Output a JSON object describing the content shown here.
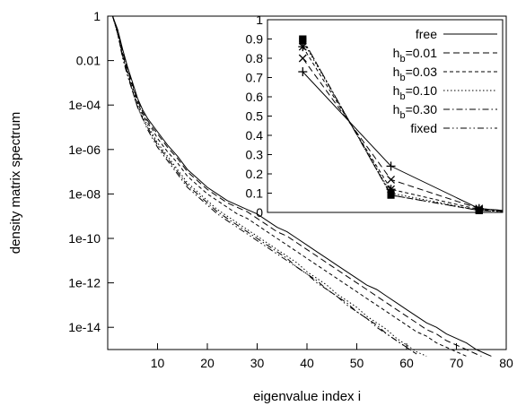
{
  "chart_data": [
    {
      "type": "line",
      "role": "main",
      "xlabel": "eigenvalue index i",
      "ylabel": "density matrix spectrum",
      "xlim": [
        0,
        80
      ],
      "ylim_log10": [
        -15,
        0
      ],
      "y_scale": "log",
      "grid": false,
      "x_ticks": [
        10,
        20,
        30,
        40,
        50,
        60,
        70,
        80
      ],
      "x_tick_labels": [
        "10",
        "20",
        "30",
        "40",
        "50",
        "60",
        "70",
        "80"
      ],
      "y_ticks_log10": [
        0,
        -2,
        -4,
        -6,
        -8,
        -10,
        -12,
        -14
      ],
      "y_tick_labels": [
        "1",
        "0.01",
        "1e-04",
        "1e-06",
        "1e-08",
        "1e-10",
        "1e-12",
        "1e-14"
      ],
      "series": [
        {
          "name": "free",
          "style": "solid",
          "x": [
            1,
            2,
            3,
            4,
            5,
            6,
            7,
            8,
            9,
            10,
            12,
            14,
            16,
            18,
            20,
            22,
            24,
            26,
            28,
            30,
            32,
            34,
            36,
            38,
            40,
            42,
            44,
            46,
            48,
            50,
            52,
            54,
            56,
            58,
            60,
            62,
            64,
            66,
            68,
            70,
            72,
            74,
            76,
            77
          ],
          "y_log10": [
            0.0,
            -0.6,
            -1.5,
            -2.3,
            -3.0,
            -3.7,
            -4.2,
            -4.6,
            -4.9,
            -5.2,
            -5.8,
            -6.3,
            -6.9,
            -7.3,
            -7.7,
            -8.0,
            -8.3,
            -8.5,
            -8.7,
            -8.9,
            -9.2,
            -9.5,
            -9.7,
            -10.0,
            -10.3,
            -10.6,
            -10.9,
            -11.2,
            -11.5,
            -11.8,
            -12.1,
            -12.3,
            -12.6,
            -12.9,
            -13.2,
            -13.5,
            -13.8,
            -14.0,
            -14.3,
            -14.5,
            -14.7,
            -15.0,
            -15.2,
            -15.3
          ]
        },
        {
          "name": "h_b=0.01",
          "style": "dashed",
          "x": [
            1,
            2,
            3,
            4,
            5,
            6,
            7,
            8,
            9,
            10,
            12,
            14,
            16,
            18,
            20,
            22,
            24,
            26,
            28,
            30,
            32,
            34,
            36,
            38,
            40,
            42,
            44,
            46,
            48,
            50,
            52,
            54,
            56,
            58,
            60,
            62,
            64,
            66,
            68,
            70,
            72,
            74,
            75
          ],
          "y_log10": [
            0.0,
            -0.7,
            -1.6,
            -2.4,
            -3.1,
            -3.8,
            -4.3,
            -4.7,
            -5.0,
            -5.3,
            -5.9,
            -6.4,
            -7.0,
            -7.4,
            -7.8,
            -8.1,
            -8.4,
            -8.6,
            -8.8,
            -9.1,
            -9.4,
            -9.7,
            -9.9,
            -10.2,
            -10.5,
            -10.8,
            -11.1,
            -11.4,
            -11.7,
            -12.0,
            -12.3,
            -12.6,
            -12.9,
            -13.2,
            -13.5,
            -13.8,
            -14.1,
            -14.3,
            -14.6,
            -14.8,
            -15.0,
            -15.2,
            -15.3
          ]
        },
        {
          "name": "h_b=0.03",
          "style": "short-dashed",
          "x": [
            1,
            2,
            3,
            4,
            5,
            6,
            7,
            8,
            9,
            10,
            12,
            14,
            16,
            18,
            20,
            22,
            24,
            26,
            28,
            30,
            32,
            34,
            36,
            38,
            40,
            42,
            44,
            46,
            48,
            50,
            52,
            54,
            56,
            58,
            60,
            62,
            64,
            66,
            68,
            70,
            72
          ],
          "y_log10": [
            0.0,
            -0.7,
            -1.7,
            -2.5,
            -3.2,
            -3.9,
            -4.4,
            -4.8,
            -5.1,
            -5.5,
            -6.1,
            -6.6,
            -7.2,
            -7.6,
            -8.0,
            -8.3,
            -8.6,
            -8.9,
            -9.1,
            -9.4,
            -9.7,
            -10.0,
            -10.3,
            -10.6,
            -10.9,
            -11.2,
            -11.5,
            -11.8,
            -12.1,
            -12.4,
            -12.7,
            -13.0,
            -13.3,
            -13.6,
            -13.9,
            -14.2,
            -14.4,
            -14.7,
            -14.9,
            -15.1,
            -15.3
          ]
        },
        {
          "name": "h_b=0.10",
          "style": "dotted",
          "x": [
            1,
            2,
            3,
            4,
            5,
            6,
            7,
            8,
            9,
            10,
            12,
            14,
            16,
            18,
            20,
            22,
            24,
            26,
            28,
            30,
            32,
            34,
            36,
            38,
            40,
            42,
            44,
            46,
            48,
            50,
            52,
            54,
            56,
            58,
            60,
            62,
            64
          ],
          "y_log10": [
            0.0,
            -0.8,
            -1.8,
            -2.6,
            -3.3,
            -4.0,
            -4.5,
            -4.9,
            -5.3,
            -5.7,
            -6.3,
            -6.9,
            -7.5,
            -7.9,
            -8.3,
            -8.7,
            -9.0,
            -9.3,
            -9.6,
            -9.9,
            -10.2,
            -10.5,
            -10.8,
            -11.1,
            -11.5,
            -11.8,
            -12.1,
            -12.5,
            -12.8,
            -13.1,
            -13.5,
            -13.8,
            -14.1,
            -14.5,
            -14.8,
            -15.1,
            -15.3
          ]
        },
        {
          "name": "h_b=0.30",
          "style": "dash-dot",
          "x": [
            1,
            2,
            3,
            4,
            5,
            6,
            7,
            8,
            9,
            10,
            12,
            14,
            16,
            18,
            20,
            22,
            24,
            26,
            28,
            30,
            32,
            34,
            36,
            38,
            40,
            42,
            44,
            46,
            48,
            50,
            52,
            54,
            56,
            58,
            60,
            62
          ],
          "y_log10": [
            0.0,
            -0.8,
            -1.8,
            -2.6,
            -3.4,
            -4.1,
            -4.6,
            -5.0,
            -5.4,
            -5.8,
            -6.4,
            -7.0,
            -7.6,
            -8.0,
            -8.4,
            -8.8,
            -9.1,
            -9.4,
            -9.7,
            -10.0,
            -10.3,
            -10.6,
            -10.9,
            -11.3,
            -11.6,
            -11.9,
            -12.3,
            -12.6,
            -12.9,
            -13.3,
            -13.6,
            -13.9,
            -14.3,
            -14.6,
            -14.9,
            -15.2
          ]
        },
        {
          "name": "fixed",
          "style": "dash-dot-dot",
          "x": [
            1,
            2,
            3,
            4,
            5,
            6,
            7,
            8,
            9,
            10,
            12,
            14,
            16,
            18,
            20,
            22,
            24,
            26,
            28,
            30,
            32,
            34,
            36,
            38,
            40,
            42,
            44,
            46,
            48,
            50,
            52,
            54,
            56,
            58,
            60,
            62
          ],
          "y_log10": [
            0.0,
            -0.8,
            -1.9,
            -2.7,
            -3.4,
            -4.1,
            -4.6,
            -5.1,
            -5.5,
            -5.9,
            -6.5,
            -7.1,
            -7.7,
            -8.1,
            -8.5,
            -8.9,
            -9.2,
            -9.5,
            -9.8,
            -10.1,
            -10.4,
            -10.7,
            -11.0,
            -11.3,
            -11.6,
            -12.0,
            -12.3,
            -12.6,
            -13.0,
            -13.3,
            -13.6,
            -14.0,
            -14.3,
            -14.6,
            -14.9,
            -15.2
          ]
        }
      ]
    },
    {
      "type": "line",
      "role": "inset",
      "xlim": [
        35,
        75
      ],
      "ylim": [
        0,
        1
      ],
      "y_ticks": [
        0,
        0.1,
        0.2,
        0.3,
        0.4,
        0.5,
        0.6,
        0.7,
        0.8,
        0.9,
        1
      ],
      "y_tick_labels": [
        "0",
        "0.1",
        "0.2",
        "0.3",
        "0.4",
        "0.5",
        "0.6",
        "0.7",
        "0.8",
        "0.9",
        "1"
      ],
      "legend_position": "top-right",
      "legend": [
        {
          "label": "free",
          "style": "solid"
        },
        {
          "label": "h_b=0.01",
          "base": "h",
          "sub": "b",
          "rest": "=0.01",
          "style": "dashed"
        },
        {
          "label": "h_b=0.03",
          "base": "h",
          "sub": "b",
          "rest": "=0.03",
          "style": "short-dashed"
        },
        {
          "label": "h_b=0.10",
          "base": "h",
          "sub": "b",
          "rest": "=0.10",
          "style": "dotted"
        },
        {
          "label": "h_b=0.30",
          "base": "h",
          "sub": "b",
          "rest": "=0.30",
          "style": "dash-dot"
        },
        {
          "label": "fixed",
          "style": "dash-dot-dot"
        }
      ],
      "series": [
        {
          "name": "free",
          "style": "solid",
          "marker": "plus",
          "x": [
            41,
            56,
            71,
            75
          ],
          "y": [
            0.73,
            0.24,
            0.02,
            0.01
          ]
        },
        {
          "name": "h_b=0.01",
          "style": "dashed",
          "marker": "cross",
          "x": [
            41,
            56,
            71,
            75
          ],
          "y": [
            0.8,
            0.17,
            0.02,
            0.01
          ]
        },
        {
          "name": "h_b=0.03",
          "style": "short-dashed",
          "marker": "star",
          "x": [
            41,
            56,
            71,
            75
          ],
          "y": [
            0.86,
            0.12,
            0.015,
            0.01
          ]
        },
        {
          "name": "h_b=0.10",
          "style": "dotted",
          "marker": "square",
          "x": [
            41,
            56,
            71,
            75
          ],
          "y": [
            0.89,
            0.1,
            0.01,
            0.005
          ]
        },
        {
          "name": "h_b=0.30",
          "style": "dash-dot",
          "marker": "square",
          "x": [
            41,
            56,
            71,
            75
          ],
          "y": [
            0.9,
            0.09,
            0.01,
            0.005
          ]
        },
        {
          "name": "fixed",
          "style": "dash-dot-dot",
          "marker": "square",
          "x": [
            41,
            56,
            71,
            75
          ],
          "y": [
            0.9,
            0.09,
            0.01,
            0.005
          ]
        }
      ]
    }
  ]
}
